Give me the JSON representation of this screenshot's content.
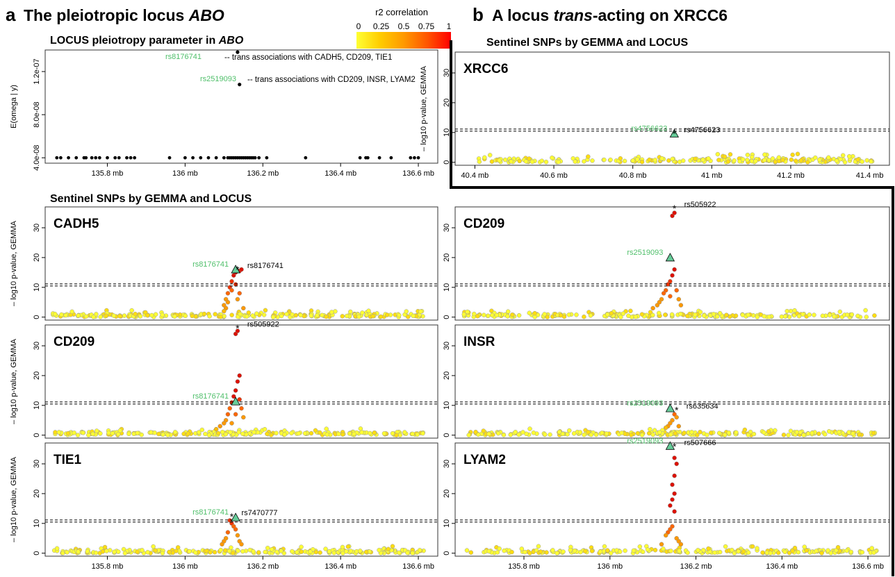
{
  "figure": {
    "panel_a": {
      "letter": "a",
      "title_prefix": "The pleiotropic locus ",
      "title_italic": "ABO",
      "pleiotropy_title_prefix": "LOCUS pleiotropy parameter in ",
      "pleiotropy_title_italic": "ABO",
      "sentinel_title": "Sentinel SNPs by GEMMA and LOCUS"
    },
    "panel_b": {
      "letter": "b",
      "title_prefix": "A locus ",
      "title_italic": "trans",
      "title_suffix": "-acting on XRCC6",
      "sentinel_title": "Sentinel SNPs by GEMMA and LOCUS"
    },
    "colorbar": {
      "title": "r2 correlation",
      "ticks": [
        "0",
        "0.25",
        "0.5",
        "0.75",
        "1"
      ],
      "colors": [
        "#ffff33",
        "#ffcc00",
        "#ff9900",
        "#ff5500",
        "#ff0000"
      ]
    },
    "annotations": {
      "rs8176741_green": "rs8176741",
      "rs8176741_text": "-- trans associations with CADH5, CD209, TIE1",
      "rs2519093_green": "rs2519093",
      "rs2519093_text": "-- trans associations with CD209, INSR, LYAM2"
    }
  },
  "chart_data": [
    {
      "id": "pleiotropy",
      "type": "scatter",
      "title": "LOCUS pleiotropy parameter in ABO",
      "ylabel": "E(omega | y)",
      "xlim": [
        135.64,
        136.65
      ],
      "ylim": [
        3.5e-08,
        1.4e-07
      ],
      "x_ticks": [
        135.8,
        136.0,
        136.2,
        136.4,
        136.6
      ],
      "x_tick_labels": [
        "135.8 mb",
        "136 mb",
        "136.2 mb",
        "136.4 mb",
        "136.6 mb"
      ],
      "y_ticks": [
        4e-08,
        8e-08,
        1.2e-07
      ],
      "y_tick_labels": [
        "4.0e-08",
        "8.0e-08",
        "1.2e-07"
      ],
      "points": [
        {
          "x": 136.135,
          "y": 1.38e-07,
          "label": "rs8176741"
        },
        {
          "x": 136.14,
          "y": 1.08e-07,
          "label": "rs2519093"
        }
      ],
      "baseline_y": 4e-08,
      "baseline_x": [
        135.67,
        135.68,
        135.7,
        135.72,
        135.74,
        135.745,
        135.76,
        135.77,
        135.78,
        135.8,
        135.82,
        135.83,
        135.85,
        135.86,
        135.87,
        135.96,
        136.0,
        136.02,
        136.04,
        136.06,
        136.08,
        136.1,
        136.11,
        136.115,
        136.12,
        136.125,
        136.13,
        136.135,
        136.14,
        136.145,
        136.15,
        136.155,
        136.16,
        136.165,
        136.17,
        136.175,
        136.18,
        136.19,
        136.21,
        136.31,
        136.45,
        136.465,
        136.47,
        136.5,
        136.53,
        136.58,
        136.59,
        136.6
      ]
    },
    {
      "id": "XRCC6",
      "type": "scatter",
      "gene": "XRCC6",
      "ylabel": "– log10 p-value, GEMMA",
      "xlim": [
        40.35,
        41.45
      ],
      "ylim": [
        -1,
        37
      ],
      "x_ticks": [
        40.4,
        40.6,
        40.8,
        41.0,
        41.2,
        41.4
      ],
      "x_tick_labels": [
        "40.4 mb",
        "40.6 mb",
        "40.8 mb",
        "41 mb",
        "41.2 mb",
        "41.4 mb"
      ],
      "y_ticks": [
        0,
        10,
        20,
        30
      ],
      "y_tick_labels": [
        "0",
        "10",
        "20",
        "30"
      ],
      "threshold": 10.8,
      "locus_snp": {
        "x": 40.905,
        "y": 9.6,
        "label": "rs4756623"
      },
      "gemma_snp": {
        "x": 40.905,
        "y": 9.6,
        "label": "rs4756623"
      },
      "band": {
        "x0": 40.41,
        "x1": 41.41,
        "ymax": 2.2
      },
      "peak": []
    },
    {
      "id": "CADH5",
      "type": "scatter",
      "gene": "CADH5",
      "ylabel": "– log10 p-value, GEMMA",
      "xlim": [
        135.64,
        136.65
      ],
      "ylim": [
        -1,
        37
      ],
      "x_ticks": [
        135.8,
        136.0,
        136.2,
        136.4,
        136.6
      ],
      "x_tick_labels": [
        "135.8 mb",
        "136 mb",
        "136.2 mb",
        "136.4 mb",
        "136.6 mb"
      ],
      "y_ticks": [
        0,
        10,
        20,
        30
      ],
      "y_tick_labels": [
        "0",
        "10",
        "20",
        "30"
      ],
      "threshold": 10.8,
      "locus_snp": {
        "x": 136.13,
        "y": 16.0,
        "label": "rs8176741"
      },
      "gemma_snp": {
        "x": 136.135,
        "y": 16.0,
        "label": "rs8176741"
      },
      "band": {
        "x0": 135.66,
        "x1": 136.62,
        "ymax": 1.8
      },
      "peak": [
        [
          136.1,
          4
        ],
        [
          136.105,
          6
        ],
        [
          136.11,
          8
        ],
        [
          136.115,
          10
        ],
        [
          136.12,
          12
        ],
        [
          136.125,
          14
        ],
        [
          136.13,
          15
        ],
        [
          136.14,
          15.5
        ],
        [
          136.145,
          16
        ],
        [
          136.12,
          9
        ],
        [
          136.13,
          11
        ],
        [
          136.11,
          5
        ],
        [
          136.105,
          3
        ],
        [
          136.1,
          2
        ],
        [
          136.14,
          8
        ],
        [
          136.135,
          6
        ],
        [
          136.15,
          3
        ]
      ]
    },
    {
      "id": "CD209_a",
      "type": "scatter",
      "gene": "CD209",
      "ylabel": "– log10 p-value, GEMMA",
      "xlim": [
        135.64,
        136.65
      ],
      "ylim": [
        -1,
        37
      ],
      "x_ticks": [
        135.8,
        136.0,
        136.2,
        136.4,
        136.6
      ],
      "x_tick_labels": [
        "135.8 mb",
        "136 mb",
        "136.2 mb",
        "136.4 mb",
        "136.6 mb"
      ],
      "y_ticks": [
        0,
        10,
        20,
        30
      ],
      "y_tick_labels": [
        "0",
        "10",
        "20",
        "30"
      ],
      "threshold": 10.8,
      "locus_snp": {
        "x": 136.13,
        "y": 11.3,
        "label": "rs8176741"
      },
      "gemma_snp": {
        "x": 136.135,
        "y": 36.0,
        "label": "rs505922"
      },
      "band": {
        "x0": 135.66,
        "x1": 136.62,
        "ymax": 1.8
      },
      "peak": [
        [
          136.13,
          34
        ],
        [
          136.135,
          35
        ],
        [
          136.14,
          20
        ],
        [
          136.135,
          18
        ],
        [
          136.13,
          15
        ],
        [
          136.125,
          13
        ],
        [
          136.12,
          11
        ],
        [
          136.115,
          9
        ],
        [
          136.11,
          7
        ],
        [
          136.105,
          5
        ],
        [
          136.1,
          4
        ],
        [
          136.09,
          3
        ],
        [
          136.08,
          2
        ],
        [
          136.14,
          12
        ],
        [
          136.145,
          9
        ],
        [
          136.15,
          6
        ],
        [
          136.13,
          7
        ],
        [
          136.12,
          4
        ]
      ]
    },
    {
      "id": "TIE1",
      "type": "scatter",
      "gene": "TIE1",
      "ylabel": "– log10 p-value, GEMMA",
      "xlim": [
        135.64,
        136.65
      ],
      "ylim": [
        -1,
        37
      ],
      "x_ticks": [
        135.8,
        136.0,
        136.2,
        136.4,
        136.6
      ],
      "x_tick_labels": [
        "135.8 mb",
        "136 mb",
        "136.2 mb",
        "136.4 mb",
        "136.6 mb"
      ],
      "y_ticks": [
        0,
        10,
        20,
        30
      ],
      "y_tick_labels": [
        "0",
        "10",
        "20",
        "30"
      ],
      "threshold": 10.8,
      "locus_snp": {
        "x": 136.13,
        "y": 12.0,
        "label": "rs8176741"
      },
      "gemma_snp": {
        "x": 136.12,
        "y": 12.3,
        "label": "rs7470777"
      },
      "band": {
        "x0": 135.66,
        "x1": 136.62,
        "ymax": 1.8
      },
      "peak": [
        [
          136.115,
          11
        ],
        [
          136.12,
          10
        ],
        [
          136.125,
          9
        ],
        [
          136.13,
          8
        ],
        [
          136.11,
          7
        ],
        [
          136.105,
          5
        ],
        [
          136.1,
          4
        ],
        [
          136.135,
          6
        ],
        [
          136.14,
          4
        ],
        [
          136.095,
          3
        ],
        [
          136.145,
          3
        ]
      ]
    },
    {
      "id": "CD209_b",
      "type": "scatter",
      "gene": "CD209",
      "ylabel": "",
      "xlim": [
        135.64,
        136.65
      ],
      "ylim": [
        -1,
        37
      ],
      "x_ticks": [
        135.8,
        136.0,
        136.2,
        136.4,
        136.6
      ],
      "x_tick_labels": [
        "135.8 mb",
        "136 mb",
        "136.2 mb",
        "136.4 mb",
        "136.6 mb"
      ],
      "y_ticks": [
        0,
        10,
        20,
        30
      ],
      "y_tick_labels": [
        "0",
        "10",
        "20",
        "30"
      ],
      "threshold": 10.8,
      "locus_snp": {
        "x": 136.14,
        "y": 20.0,
        "label": "rs2519093"
      },
      "gemma_snp": {
        "x": 136.15,
        "y": 36.5,
        "label": "rs505922"
      },
      "band": {
        "x0": 135.66,
        "x1": 136.62,
        "ymax": 1.8
      },
      "peak": [
        [
          136.145,
          34
        ],
        [
          136.15,
          35
        ],
        [
          136.15,
          16
        ],
        [
          136.145,
          14
        ],
        [
          136.14,
          12
        ],
        [
          136.135,
          11
        ],
        [
          136.13,
          9
        ],
        [
          136.125,
          8
        ],
        [
          136.12,
          6
        ],
        [
          136.115,
          5
        ],
        [
          136.11,
          4
        ],
        [
          136.1,
          3
        ],
        [
          136.155,
          9
        ],
        [
          136.16,
          6
        ],
        [
          136.165,
          4
        ],
        [
          136.14,
          7
        ]
      ]
    },
    {
      "id": "INSR",
      "type": "scatter",
      "gene": "INSR",
      "ylabel": "",
      "xlim": [
        135.64,
        136.65
      ],
      "ylim": [
        -1,
        37
      ],
      "x_ticks": [
        135.8,
        136.0,
        136.2,
        136.4,
        136.6
      ],
      "x_tick_labels": [
        "135.8 mb",
        "136 mb",
        "136.2 mb",
        "136.4 mb",
        "136.6 mb"
      ],
      "y_ticks": [
        0,
        10,
        20,
        30
      ],
      "y_tick_labels": [
        "0",
        "10",
        "20",
        "30"
      ],
      "threshold": 10.8,
      "locus_snp": {
        "x": 136.14,
        "y": 9.0,
        "label": "rs2519093"
      },
      "gemma_snp": {
        "x": 136.155,
        "y": 8.5,
        "label": "rs635634"
      },
      "band": {
        "x0": 135.66,
        "x1": 136.62,
        "ymax": 1.8
      },
      "peak": [
        [
          136.15,
          7
        ],
        [
          136.155,
          6
        ],
        [
          136.145,
          5
        ],
        [
          136.14,
          4
        ],
        [
          136.135,
          3
        ],
        [
          136.16,
          3
        ],
        [
          136.13,
          2.5
        ]
      ]
    },
    {
      "id": "LYAM2",
      "type": "scatter",
      "gene": "LYAM2",
      "ylabel": "",
      "xlim": [
        135.64,
        136.65
      ],
      "ylim": [
        -1,
        37
      ],
      "x_ticks": [
        135.8,
        136.0,
        136.2,
        136.4,
        136.6
      ],
      "x_tick_labels": [
        "135.8 mb",
        "136 mb",
        "136.2 mb",
        "136.4 mb",
        "136.6 mb"
      ],
      "y_ticks": [
        0,
        10,
        20,
        30
      ],
      "y_tick_labels": [
        "0",
        "10",
        "20",
        "30"
      ],
      "threshold": 10.8,
      "locus_snp": {
        "x": 136.14,
        "y": 36.0,
        "label": "rs2519093"
      },
      "gemma_snp": {
        "x": 136.15,
        "y": 35.8,
        "label": "rs507666"
      },
      "band": {
        "x0": 135.66,
        "x1": 136.62,
        "ymax": 1.8
      },
      "peak": [
        [
          136.15,
          32
        ],
        [
          136.155,
          30
        ],
        [
          136.15,
          26
        ],
        [
          136.145,
          23
        ],
        [
          136.15,
          20
        ],
        [
          136.145,
          18
        ],
        [
          136.14,
          16
        ],
        [
          136.15,
          14
        ],
        [
          136.145,
          9
        ],
        [
          136.14,
          8
        ],
        [
          136.135,
          7
        ],
        [
          136.13,
          6
        ],
        [
          136.155,
          5
        ],
        [
          136.16,
          4
        ],
        [
          136.12,
          3
        ],
        [
          136.165,
          3
        ]
      ]
    }
  ]
}
